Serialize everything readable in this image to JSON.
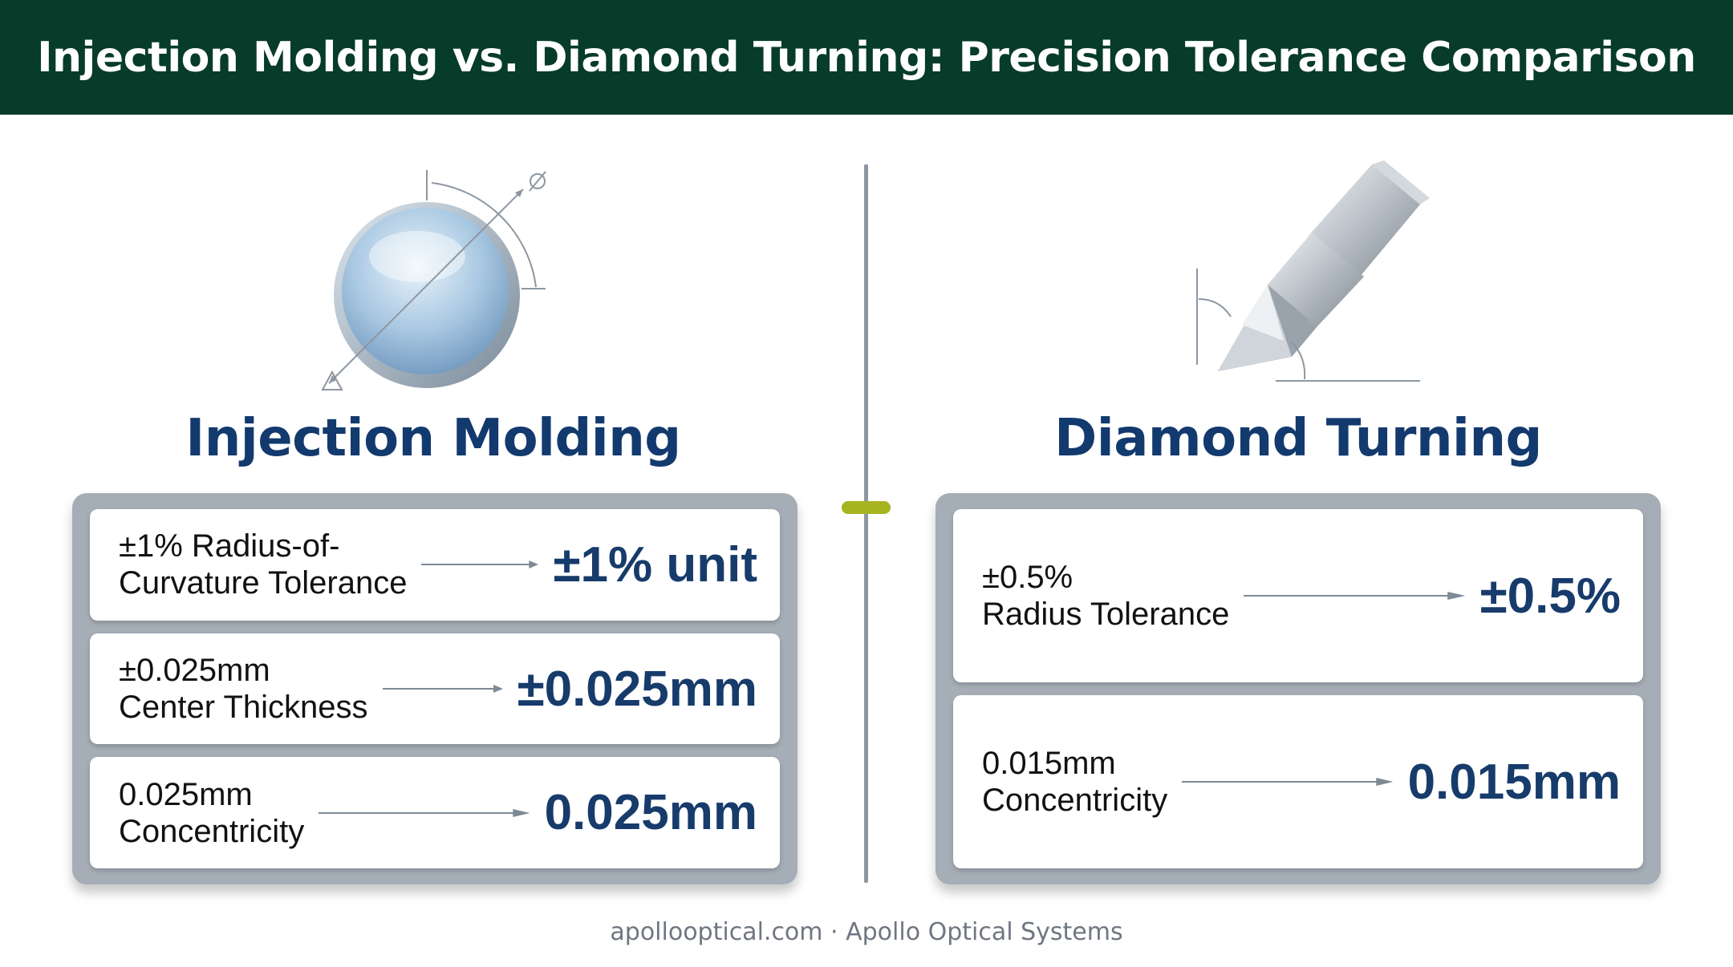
{
  "header": {
    "title": "Injection Molding vs. Diamond Turning: Precision Tolerance Comparison"
  },
  "left": {
    "title": "Injection Molding",
    "illustration_icon": "lens-icon",
    "rows": [
      {
        "label": "±1% Radius-of-\nCurvature Tolerance",
        "value": "±1% unit"
      },
      {
        "label": "±0.025mm\nCenter Thickness",
        "value": "±0.025mm"
      },
      {
        "label": "0.025mm\nConcentricity",
        "value": "0.025mm"
      }
    ]
  },
  "right": {
    "title": "Diamond Turning",
    "illustration_icon": "diamond-tool-icon",
    "rows": [
      {
        "label": "±0.5%\nRadius Tolerance",
        "value": "±0.5%"
      },
      {
        "label": "0.015mm\nConcentricity",
        "value": "0.015mm"
      }
    ]
  },
  "footer": {
    "text": "apollooptical.com · Apollo Optical Systems"
  },
  "colors": {
    "header_bg": "#073b2a",
    "title_blue": "#133a6e",
    "panel_gray": "#a5adb7",
    "divider_accent": "#a7b31f"
  }
}
